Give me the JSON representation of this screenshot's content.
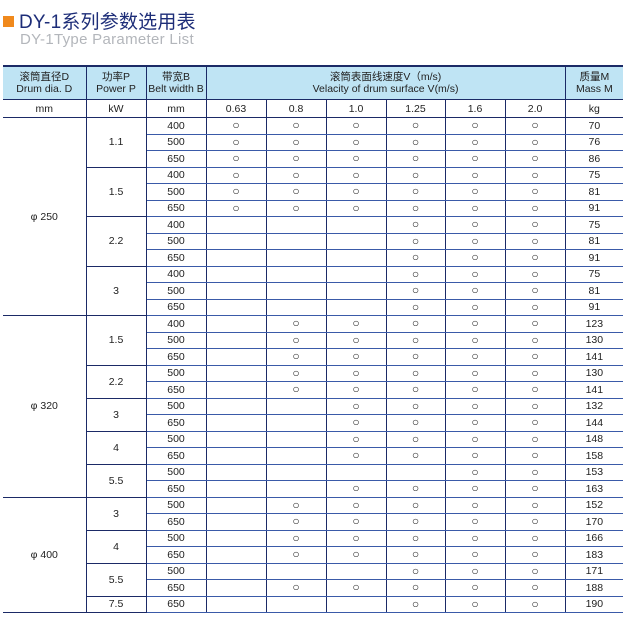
{
  "title": "DY-1系列参数选用表",
  "subtitle": "DY-1Type Parameter List",
  "colors": {
    "accent": "#f0891c",
    "title": "#1d2d78",
    "header_bg": "#bfe4f4",
    "grid": "#1b2a66"
  },
  "header": {
    "drum": {
      "cn": "滚筒直径D",
      "en": "Drum dia. D",
      "unit": "mm"
    },
    "power": {
      "cn": "功率P",
      "en": "Power P",
      "unit": "kW"
    },
    "belt": {
      "cn": "带宽B",
      "en": "Belt width B",
      "unit": "mm"
    },
    "speed": {
      "cn": "滚筒表面线速度V（m/s)",
      "en": "Velacity of drum surface V(m/s)",
      "values": [
        "0.63",
        "0.8",
        "1.0",
        "1.25",
        "1.6",
        "2.0"
      ]
    },
    "mass": {
      "cn": "质量M",
      "en": "Mass M",
      "unit": "kg"
    }
  },
  "mark": "○",
  "drums": [
    {
      "dia": "φ 250",
      "powers": [
        {
          "p": "1.1",
          "rows": [
            {
              "b": "400",
              "v": [
                1,
                1,
                1,
                1,
                1,
                1
              ],
              "m": "70"
            },
            {
              "b": "500",
              "v": [
                1,
                1,
                1,
                1,
                1,
                1
              ],
              "m": "76"
            },
            {
              "b": "650",
              "v": [
                1,
                1,
                1,
                1,
                1,
                1
              ],
              "m": "86"
            }
          ]
        },
        {
          "p": "1.5",
          "rows": [
            {
              "b": "400",
              "v": [
                1,
                1,
                1,
                1,
                1,
                1
              ],
              "m": "75"
            },
            {
              "b": "500",
              "v": [
                1,
                1,
                1,
                1,
                1,
                1
              ],
              "m": "81"
            },
            {
              "b": "650",
              "v": [
                1,
                1,
                1,
                1,
                1,
                1
              ],
              "m": "91"
            }
          ]
        },
        {
          "p": "2.2",
          "rows": [
            {
              "b": "400",
              "v": [
                0,
                0,
                0,
                1,
                1,
                1
              ],
              "m": "75"
            },
            {
              "b": "500",
              "v": [
                0,
                0,
                0,
                1,
                1,
                1
              ],
              "m": "81"
            },
            {
              "b": "650",
              "v": [
                0,
                0,
                0,
                1,
                1,
                1
              ],
              "m": "91"
            }
          ]
        },
        {
          "p": "3",
          "rows": [
            {
              "b": "400",
              "v": [
                0,
                0,
                0,
                1,
                1,
                1
              ],
              "m": "75"
            },
            {
              "b": "500",
              "v": [
                0,
                0,
                0,
                1,
                1,
                1
              ],
              "m": "81"
            },
            {
              "b": "650",
              "v": [
                0,
                0,
                0,
                1,
                1,
                1
              ],
              "m": "91"
            }
          ]
        }
      ]
    },
    {
      "dia": "φ 320",
      "powers": [
        {
          "p": "1.5",
          "rows": [
            {
              "b": "400",
              "v": [
                0,
                1,
                1,
                1,
                1,
                1
              ],
              "m": "123"
            },
            {
              "b": "500",
              "v": [
                0,
                1,
                1,
                1,
                1,
                1
              ],
              "m": "130"
            },
            {
              "b": "650",
              "v": [
                0,
                1,
                1,
                1,
                1,
                1
              ],
              "m": "141"
            }
          ]
        },
        {
          "p": "2.2",
          "rows": [
            {
              "b": "500",
              "v": [
                0,
                1,
                1,
                1,
                1,
                1
              ],
              "m": "130"
            },
            {
              "b": "650",
              "v": [
                0,
                1,
                1,
                1,
                1,
                1
              ],
              "m": "141"
            }
          ]
        },
        {
          "p": "3",
          "rows": [
            {
              "b": "500",
              "v": [
                0,
                0,
                1,
                1,
                1,
                1
              ],
              "m": "132"
            },
            {
              "b": "650",
              "v": [
                0,
                0,
                1,
                1,
                1,
                1
              ],
              "m": "144"
            }
          ]
        },
        {
          "p": "4",
          "rows": [
            {
              "b": "500",
              "v": [
                0,
                0,
                1,
                1,
                1,
                1
              ],
              "m": "148"
            },
            {
              "b": "650",
              "v": [
                0,
                0,
                1,
                1,
                1,
                1
              ],
              "m": "158"
            }
          ]
        },
        {
          "p": "5.5",
          "rows": [
            {
              "b": "500",
              "v": [
                0,
                0,
                0,
                0,
                1,
                1
              ],
              "m": "153"
            },
            {
              "b": "650",
              "v": [
                0,
                0,
                1,
                1,
                1,
                1
              ],
              "m": "163"
            }
          ]
        }
      ]
    },
    {
      "dia": "φ 400",
      "powers": [
        {
          "p": "3",
          "rows": [
            {
              "b": "500",
              "v": [
                0,
                1,
                1,
                1,
                1,
                1
              ],
              "m": "152"
            },
            {
              "b": "650",
              "v": [
                0,
                1,
                1,
                1,
                1,
                1
              ],
              "m": "170"
            }
          ]
        },
        {
          "p": "4",
          "rows": [
            {
              "b": "500",
              "v": [
                0,
                1,
                1,
                1,
                1,
                1
              ],
              "m": "166"
            },
            {
              "b": "650",
              "v": [
                0,
                1,
                1,
                1,
                1,
                1
              ],
              "m": "183"
            }
          ]
        },
        {
          "p": "5.5",
          "rows": [
            {
              "b": "500",
              "v": [
                0,
                0,
                0,
                1,
                1,
                1
              ],
              "m": "171"
            },
            {
              "b": "650",
              "v": [
                0,
                1,
                1,
                1,
                1,
                1
              ],
              "m": "188"
            }
          ]
        },
        {
          "p": "7.5",
          "rows": [
            {
              "b": "650",
              "v": [
                0,
                0,
                0,
                1,
                1,
                1
              ],
              "m": "190"
            }
          ]
        }
      ]
    }
  ]
}
